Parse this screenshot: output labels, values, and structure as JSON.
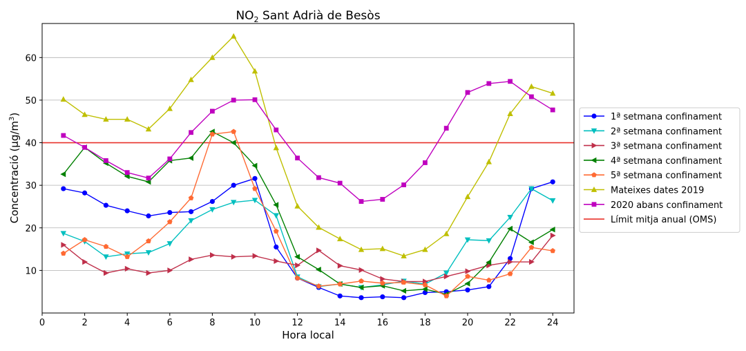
{
  "chart_data": {
    "type": "line",
    "title_main": "NO",
    "title_sub": "2",
    "title_rest": " Sant Adrià de Besòs",
    "xlabel": "Hora local",
    "ylabel_main": "Concentració (μg/m",
    "ylabel_sup": "3",
    "ylabel_end": ")",
    "xlim": [
      0,
      25
    ],
    "ylim": [
      0,
      68
    ],
    "xticks": [
      0,
      2,
      4,
      6,
      8,
      10,
      12,
      14,
      16,
      18,
      20,
      22,
      24
    ],
    "yticks": [
      10,
      20,
      30,
      40,
      50,
      60
    ],
    "grid": "horizontal",
    "legend_position": "right",
    "x": [
      1,
      2,
      3,
      4,
      5,
      6,
      7,
      8,
      9,
      10,
      11,
      12,
      13,
      14,
      15,
      16,
      17,
      18,
      19,
      20,
      21,
      22,
      23,
      24
    ],
    "series": [
      {
        "name": "1ª setmana confinament",
        "color": "#0000ff",
        "marker": "circle",
        "values": [
          29.2,
          28.2,
          25.3,
          24.0,
          22.8,
          23.6,
          23.8,
          26.2,
          30.0,
          31.6,
          15.5,
          8.2,
          6.0,
          4.0,
          3.6,
          3.8,
          3.6,
          4.8,
          5.0,
          5.4,
          6.2,
          12.8,
          29.2,
          30.8
        ]
      },
      {
        "name": "2ª setmana confinament",
        "color": "#00bfbf",
        "marker": "triangle-down",
        "values": [
          18.7,
          16.8,
          13.2,
          13.9,
          14.2,
          16.3,
          21.7,
          24.3,
          26.0,
          26.5,
          22.9,
          8.5,
          6.2,
          6.8,
          6.0,
          6.6,
          7.5,
          6.8,
          9.4,
          17.2,
          17.0,
          22.5,
          29.2,
          26.4
        ]
      },
      {
        "name": "3ª setmana confinament",
        "color": "#bf2f4a",
        "marker": "triangle-right",
        "values": [
          16.0,
          12.0,
          9.4,
          10.4,
          9.4,
          10.0,
          12.6,
          13.6,
          13.2,
          13.4,
          12.2,
          11.2,
          14.7,
          11.1,
          10.1,
          8.0,
          7.4,
          7.4,
          8.6,
          9.8,
          11.2,
          12.0,
          12.0,
          18.2
        ]
      },
      {
        "name": "4ª setmana confinament",
        "color": "#008000",
        "marker": "triangle-left",
        "values": [
          32.6,
          38.9,
          35.2,
          32.1,
          30.8,
          35.8,
          36.4,
          42.6,
          40.0,
          34.6,
          25.4,
          13.2,
          10.2,
          6.8,
          6.0,
          6.4,
          5.2,
          5.6,
          4.4,
          6.9,
          11.9,
          19.8,
          16.6,
          19.6
        ]
      },
      {
        "name": "5ª setmana confinament",
        "color": "#ff6a33",
        "marker": "pentagon",
        "values": [
          14.0,
          17.2,
          15.6,
          13.2,
          16.9,
          21.4,
          27.0,
          42.0,
          42.6,
          29.2,
          19.2,
          8.2,
          6.3,
          6.8,
          7.5,
          7.0,
          7.2,
          6.6,
          4.0,
          8.6,
          7.7,
          9.2,
          15.4,
          14.6
        ]
      },
      {
        "name": "Mateixes dates 2019",
        "color": "#bfbf00",
        "marker": "triangle-up",
        "values": [
          50.2,
          46.6,
          45.5,
          45.5,
          43.2,
          48.0,
          54.8,
          60.0,
          65.0,
          56.8,
          38.8,
          25.1,
          20.1,
          17.4,
          14.9,
          15.1,
          13.4,
          14.9,
          18.6,
          27.3,
          35.5,
          46.8,
          53.2,
          51.6
        ]
      },
      {
        "name": "2020 abans confinament",
        "color": "#bf00bf",
        "marker": "square",
        "values": [
          41.7,
          38.9,
          35.8,
          33.0,
          31.7,
          36.2,
          42.4,
          47.4,
          50.0,
          50.1,
          43.0,
          36.4,
          31.8,
          30.5,
          26.2,
          26.7,
          30.1,
          35.3,
          43.4,
          51.8,
          53.9,
          54.4,
          50.8,
          47.7
        ]
      }
    ],
    "reference_line": {
      "name": "Límit mitja anual (OMS)",
      "value": 40,
      "color": "#e8302a"
    }
  }
}
